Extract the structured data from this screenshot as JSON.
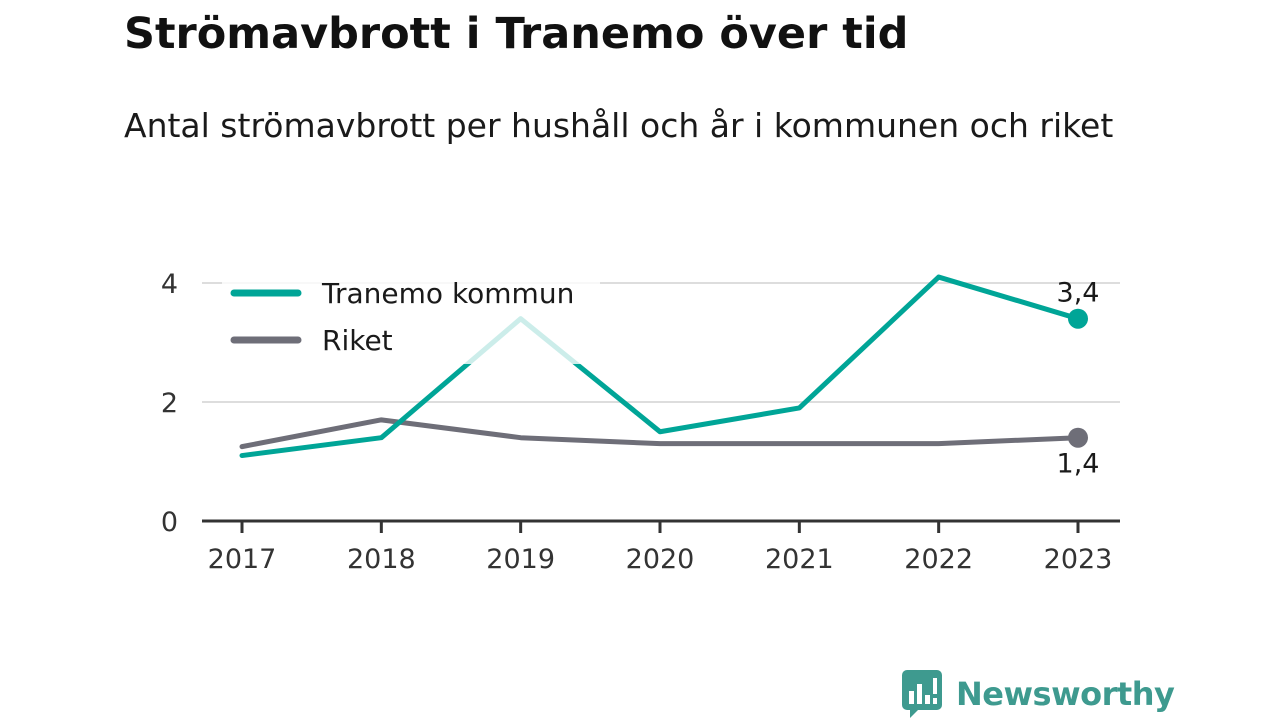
{
  "header": {
    "title": "Strömavbrott i Tranemo över tid",
    "subtitle": "Antal strömavbrott per hushåll och år i kommunen och riket"
  },
  "chart_data": {
    "type": "line",
    "title": "Strömavbrott i Tranemo över tid",
    "subtitle": "Antal strömavbrott per hushåll och år i kommunen och riket",
    "xlabel": "",
    "ylabel": "",
    "x": [
      "2017",
      "2018",
      "2019",
      "2020",
      "2021",
      "2022",
      "2023"
    ],
    "yticks": [
      0,
      2,
      4
    ],
    "ytick_labels": [
      "0",
      "2",
      "4"
    ],
    "ylim": [
      0,
      4.3
    ],
    "grid": true,
    "legend_position": "top-left",
    "series": [
      {
        "name": "Tranemo kommun",
        "color": "#00a597",
        "values": [
          1.1,
          1.4,
          3.4,
          1.5,
          1.9,
          4.1,
          3.4
        ],
        "end_label": "3,4"
      },
      {
        "name": "Riket",
        "color": "#6e6e78",
        "values": [
          1.25,
          1.7,
          1.4,
          1.3,
          1.3,
          1.3,
          1.4
        ],
        "end_label": "1,4"
      }
    ]
  },
  "brand": {
    "name": "Newsworthy",
    "icon": "newsworthy-logo-icon",
    "color": "#3e9a8f"
  }
}
